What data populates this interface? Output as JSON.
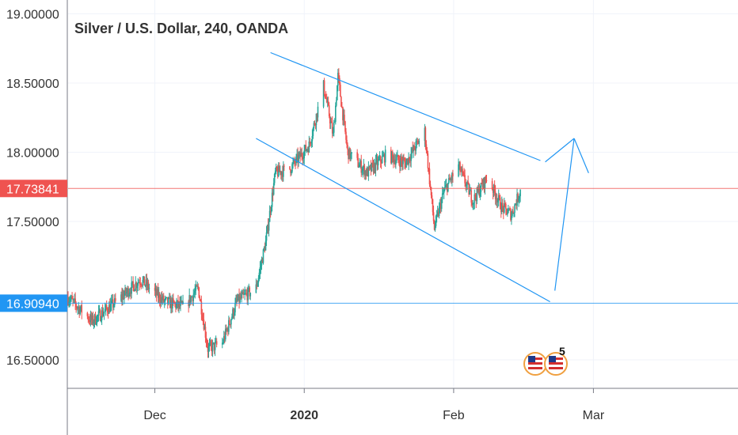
{
  "chart_data": {
    "type": "candlestick",
    "title": "Silver / U.S. Dollar, 240, OANDA",
    "y_axis": {
      "ticks": [
        {
          "value": 19.0,
          "label": "19.00000"
        },
        {
          "value": 18.5,
          "label": "18.50000"
        },
        {
          "value": 18.0,
          "label": "18.00000"
        },
        {
          "value": 17.5,
          "label": "17.50000"
        },
        {
          "value": 16.5,
          "label": "16.50000"
        }
      ],
      "ylim": [
        16.3,
        19.1
      ],
      "grid": true
    },
    "x_axis": {
      "xlim": [
        "2019-11-13",
        "2020-03-31"
      ],
      "ticks": [
        {
          "date": "2019-12-01",
          "label": "Dec",
          "bold": false
        },
        {
          "date": "2020-01-01",
          "label": "2020",
          "bold": true
        },
        {
          "date": "2020-02-01",
          "label": "Feb",
          "bold": false
        },
        {
          "date": "2020-03-01",
          "label": "Mar",
          "bold": false
        }
      ],
      "grid": true
    },
    "price_markers": [
      {
        "value": 17.73841,
        "label": "17.73841",
        "color": "#ef5350",
        "style": "line"
      },
      {
        "value": 16.9094,
        "label": "16.90940",
        "color": "#2196f3",
        "style": "line"
      }
    ],
    "key_points": [
      {
        "date": "2019-11-13",
        "close": 16.95
      },
      {
        "date": "2019-11-18",
        "close": 16.78
      },
      {
        "date": "2019-11-23",
        "close": 16.92
      },
      {
        "date": "2019-11-28",
        "close": 17.08
      },
      {
        "date": "2019-12-03",
        "close": 16.92
      },
      {
        "date": "2019-12-07",
        "close": 16.88
      },
      {
        "date": "2019-12-10",
        "close": 17.02
      },
      {
        "date": "2019-12-12",
        "close": 16.58
      },
      {
        "date": "2019-12-15",
        "close": 16.62
      },
      {
        "date": "2019-12-18",
        "close": 16.92
      },
      {
        "date": "2019-12-22",
        "close": 17.02
      },
      {
        "date": "2019-12-24",
        "close": 17.35
      },
      {
        "date": "2019-12-26",
        "close": 17.85
      },
      {
        "date": "2019-12-29",
        "close": 17.88
      },
      {
        "date": "2020-01-02",
        "close": 18.05
      },
      {
        "date": "2020-01-05",
        "close": 18.48
      },
      {
        "date": "2020-01-07",
        "close": 18.12
      },
      {
        "date": "2020-01-08",
        "close": 18.55
      },
      {
        "date": "2020-01-10",
        "close": 18.0
      },
      {
        "date": "2020-01-14",
        "close": 17.85
      },
      {
        "date": "2020-01-18",
        "close": 17.98
      },
      {
        "date": "2020-01-22",
        "close": 17.92
      },
      {
        "date": "2020-01-26",
        "close": 18.15
      },
      {
        "date": "2020-01-28",
        "close": 17.45
      },
      {
        "date": "2020-01-30",
        "close": 17.72
      },
      {
        "date": "2020-02-02",
        "close": 17.9
      },
      {
        "date": "2020-02-05",
        "close": 17.65
      },
      {
        "date": "2020-02-08",
        "close": 17.82
      },
      {
        "date": "2020-02-11",
        "close": 17.6
      },
      {
        "date": "2020-02-13",
        "close": 17.55
      },
      {
        "date": "2020-02-15",
        "close": 17.74
      }
    ],
    "trendlines": [
      {
        "from": {
          "date": "2019-12-25",
          "value": 18.72
        },
        "to": {
          "date": "2020-02-19",
          "value": 17.94
        },
        "color": "#2196f3"
      },
      {
        "from": {
          "date": "2019-12-22",
          "value": 18.1
        },
        "to": {
          "date": "2020-02-21",
          "value": 16.92
        },
        "color": "#2196f3"
      },
      {
        "from": {
          "date": "2020-02-22",
          "value": 17.0
        },
        "to": {
          "date": "2020-02-26",
          "value": 18.1
        },
        "color": "#2196f3"
      },
      {
        "from": {
          "date": "2020-02-20",
          "value": 17.93
        },
        "to": {
          "date": "2020-02-26",
          "value": 18.1
        },
        "color": "#2196f3"
      },
      {
        "from": {
          "date": "2020-02-26",
          "value": 18.1
        },
        "to": {
          "date": "2020-02-29",
          "value": 17.85
        },
        "color": "#2196f3"
      }
    ],
    "colors": {
      "up": "#26a69a",
      "down": "#ef5350"
    }
  },
  "logo": {
    "text": "5"
  }
}
